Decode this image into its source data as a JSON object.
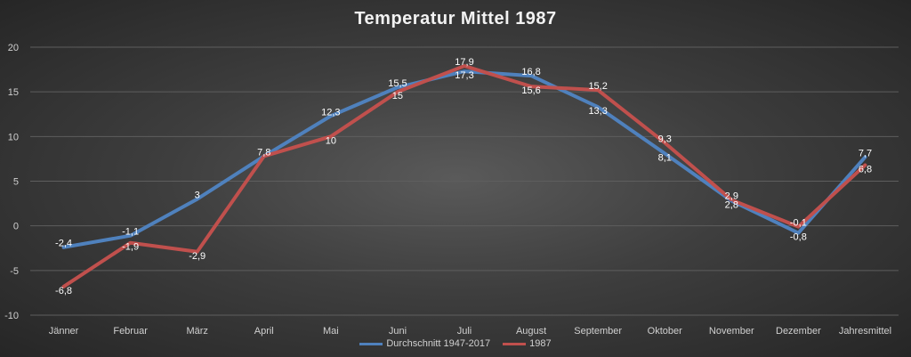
{
  "chart_data": {
    "type": "line",
    "title": "Temperatur Mittel 1987",
    "categories": [
      "Jänner",
      "Februar",
      "März",
      "April",
      "Mai",
      "Juni",
      "Juli",
      "August",
      "September",
      "Oktober",
      "November",
      "Dezember",
      "Jahresmittel"
    ],
    "ylim": [
      -10,
      20
    ],
    "yticks": [
      -10,
      -5,
      0,
      5,
      10,
      15,
      20
    ],
    "grid": true,
    "legend_position": "bottom",
    "series": [
      {
        "name": "Durchschnitt 1947-2017",
        "color": "#4f81bd",
        "values": [
          -2.4,
          -1.1,
          3,
          7.8,
          12.3,
          15.5,
          17.3,
          16.8,
          13.3,
          8.1,
          2.8,
          -0.8,
          7.7
        ],
        "labels": [
          "-2,4",
          "-1,1",
          "3",
          "7,8",
          "12,3",
          "15,5",
          "17,3",
          "16,8",
          "13,3",
          "8,1",
          "2,8",
          "-0,8",
          "7,7"
        ]
      },
      {
        "name": "1987",
        "color": "#c0504d",
        "values": [
          -6.8,
          -1.9,
          -2.9,
          7.8,
          10,
          15,
          17.9,
          15.6,
          15.2,
          9.3,
          2.9,
          -0.1,
          6.8
        ],
        "labels": [
          "-6,8",
          "-1,9",
          "-2,9",
          "7,8",
          "10",
          "15",
          "17,9",
          "15,6",
          "15,2",
          "9,3",
          "2,9",
          "-0,1",
          "6,8"
        ]
      }
    ]
  }
}
